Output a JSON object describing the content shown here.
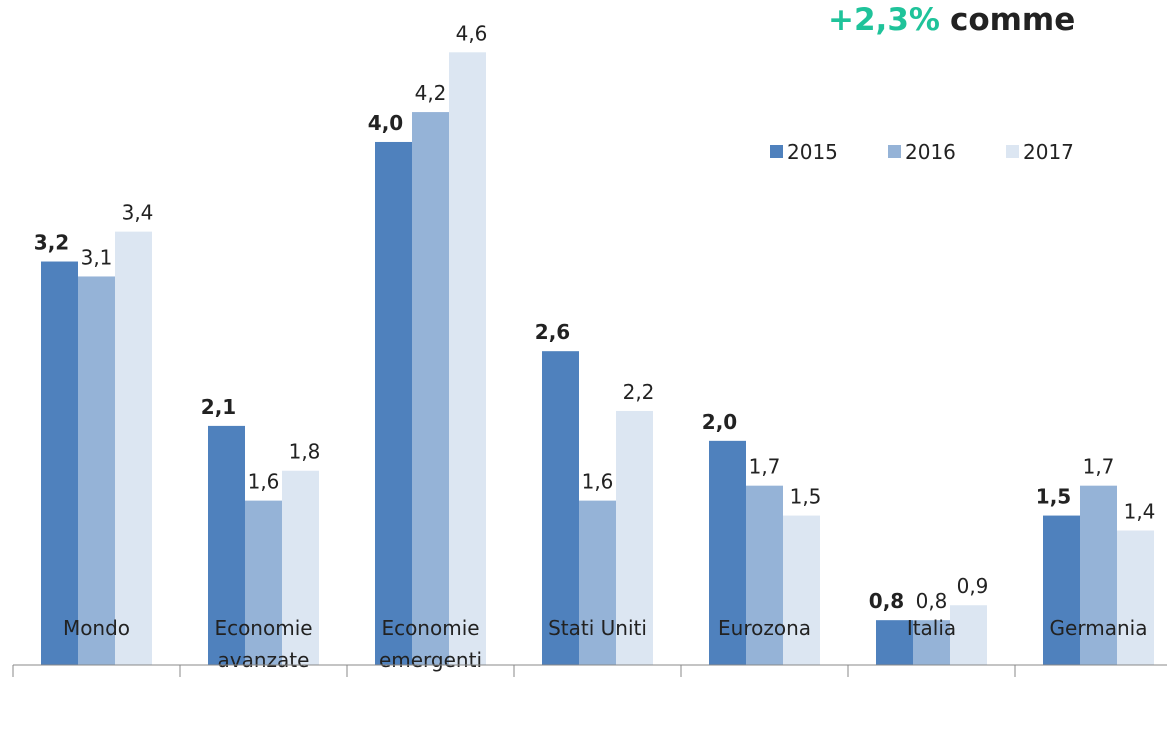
{
  "chart_data": {
    "type": "bar",
    "annotation": {
      "highlight": "+2,3%",
      "text": "comme"
    },
    "categories": [
      [
        "Mondo"
      ],
      [
        "Economie",
        "avanzate"
      ],
      [
        "Economie",
        "emergenti"
      ],
      [
        "Stati Uniti"
      ],
      [
        "Eurozona"
      ],
      [
        "Italia"
      ],
      [
        "Germania"
      ]
    ],
    "series": [
      {
        "name": "2015",
        "color": "#4f81bd",
        "values": [
          3.2,
          2.1,
          4.0,
          2.6,
          2.0,
          0.8,
          1.5
        ],
        "value_labels": [
          "3,2",
          "2,1",
          "4,0",
          "2,6",
          "2,0",
          "0,8",
          "1,5"
        ]
      },
      {
        "name": "2016",
        "color": "#95b3d7",
        "values": [
          3.1,
          1.6,
          4.2,
          1.6,
          1.7,
          0.8,
          1.7
        ],
        "value_labels": [
          "3,1",
          "1,6",
          "4,2",
          "1,6",
          "1,7",
          "0,8",
          "1,7"
        ]
      },
      {
        "name": "2017",
        "color": "#dce6f2",
        "values": [
          3.4,
          1.8,
          4.6,
          2.2,
          1.5,
          0.9,
          1.4
        ],
        "value_labels": [
          "3,4",
          "1,8",
          "4,6",
          "2,2",
          "1,5",
          "0,9",
          "1,4"
        ]
      }
    ],
    "ylim": [
      0.5,
      4.95
    ],
    "legend": "top-right"
  }
}
